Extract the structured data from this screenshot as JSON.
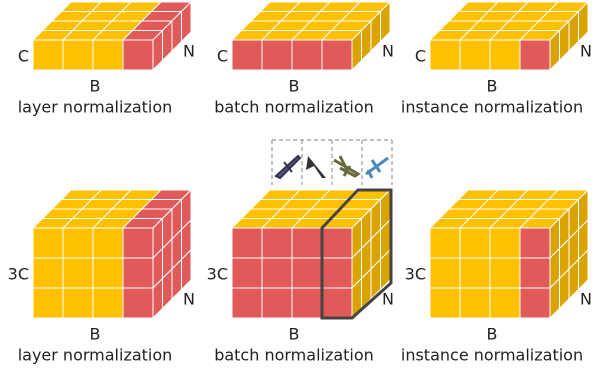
{
  "panels": [
    {
      "channel_label": "C",
      "sample_label": "N",
      "batch_label": "B",
      "caption": "layer normalization"
    },
    {
      "channel_label": "C",
      "sample_label": "N",
      "batch_label": "B",
      "caption": "batch normalization"
    },
    {
      "channel_label": "C",
      "sample_label": "N",
      "batch_label": "B",
      "caption": "instance normalization"
    },
    {
      "channel_label": "3C",
      "sample_label": "N",
      "batch_label": "B",
      "caption": "layer normalization"
    },
    {
      "channel_label": "3C",
      "sample_label": "N",
      "batch_label": "B",
      "caption": "batch normalization"
    },
    {
      "channel_label": "3C",
      "sample_label": "N",
      "batch_label": "B",
      "caption": "instance normalization"
    }
  ]
}
